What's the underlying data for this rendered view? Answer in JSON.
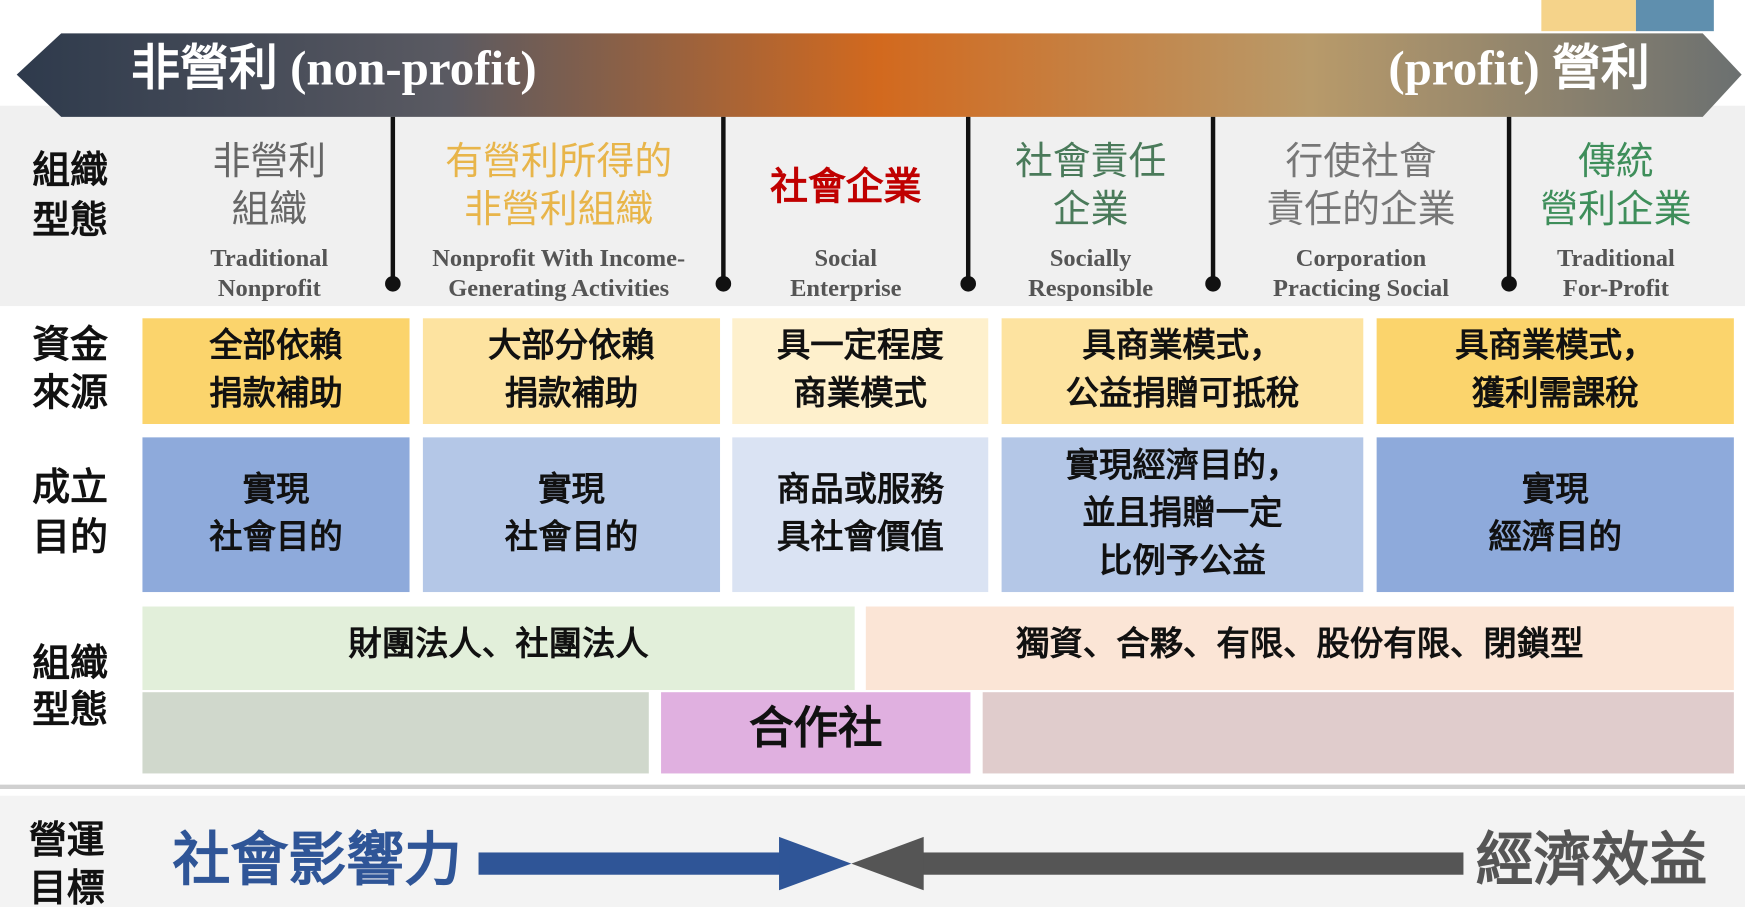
{
  "header": {
    "left": "非營利 (non-profit)",
    "right": "(profit) 營利"
  },
  "types": {
    "label": [
      "組織",
      "型態"
    ],
    "columns": [
      {
        "zh": [
          "非營利",
          "組織"
        ],
        "en": [
          "Traditional",
          "Nonprofit"
        ]
      },
      {
        "zh": [
          "有營利所得的",
          "非營利組織"
        ],
        "en": [
          "Nonprofit With Income-",
          "Generating Activities"
        ]
      },
      {
        "zh": [
          "社會企業"
        ],
        "en": [
          "Social",
          "Enterprise"
        ]
      },
      {
        "zh": [
          "社會責任",
          "企業"
        ],
        "en": [
          "Socially",
          "Responsible"
        ]
      },
      {
        "zh": [
          "行使社會",
          "責任的企業"
        ],
        "en": [
          "Corporation",
          "Practicing  Social"
        ]
      },
      {
        "zh": [
          "傳統",
          "營利企業"
        ],
        "en": [
          "Traditional",
          "For-Profit"
        ]
      }
    ]
  },
  "funding": {
    "label": [
      "資金",
      "來源"
    ],
    "cells": [
      [
        "全部依賴",
        "捐款補助"
      ],
      [
        "大部分依賴",
        "捐款補助"
      ],
      [
        "具一定程度",
        "商業模式"
      ],
      [
        "具商業模式，",
        "公益捐贈可抵稅"
      ],
      [
        "具商業模式，",
        "獲利需課稅"
      ]
    ]
  },
  "purpose": {
    "label": [
      "成立",
      "目的"
    ],
    "cells": [
      [
        "實現",
        "社會目的"
      ],
      [
        "實現",
        "社會目的"
      ],
      [
        "商品或服務",
        "具社會價值"
      ],
      [
        "實現經濟目的，",
        "並且捐贈一定",
        "比例予公益"
      ],
      [
        "實現",
        "經濟目的"
      ]
    ]
  },
  "legal": {
    "label": [
      "組織",
      "型態"
    ],
    "nonprofit": "財團法人、社團法人",
    "profit": "獨資、合夥、有限、股份有限、閉鎖型",
    "cooperative": "合作社"
  },
  "goal": {
    "label": [
      "營運",
      "目標"
    ],
    "social": "社會影響力",
    "economic": "經濟效益"
  }
}
